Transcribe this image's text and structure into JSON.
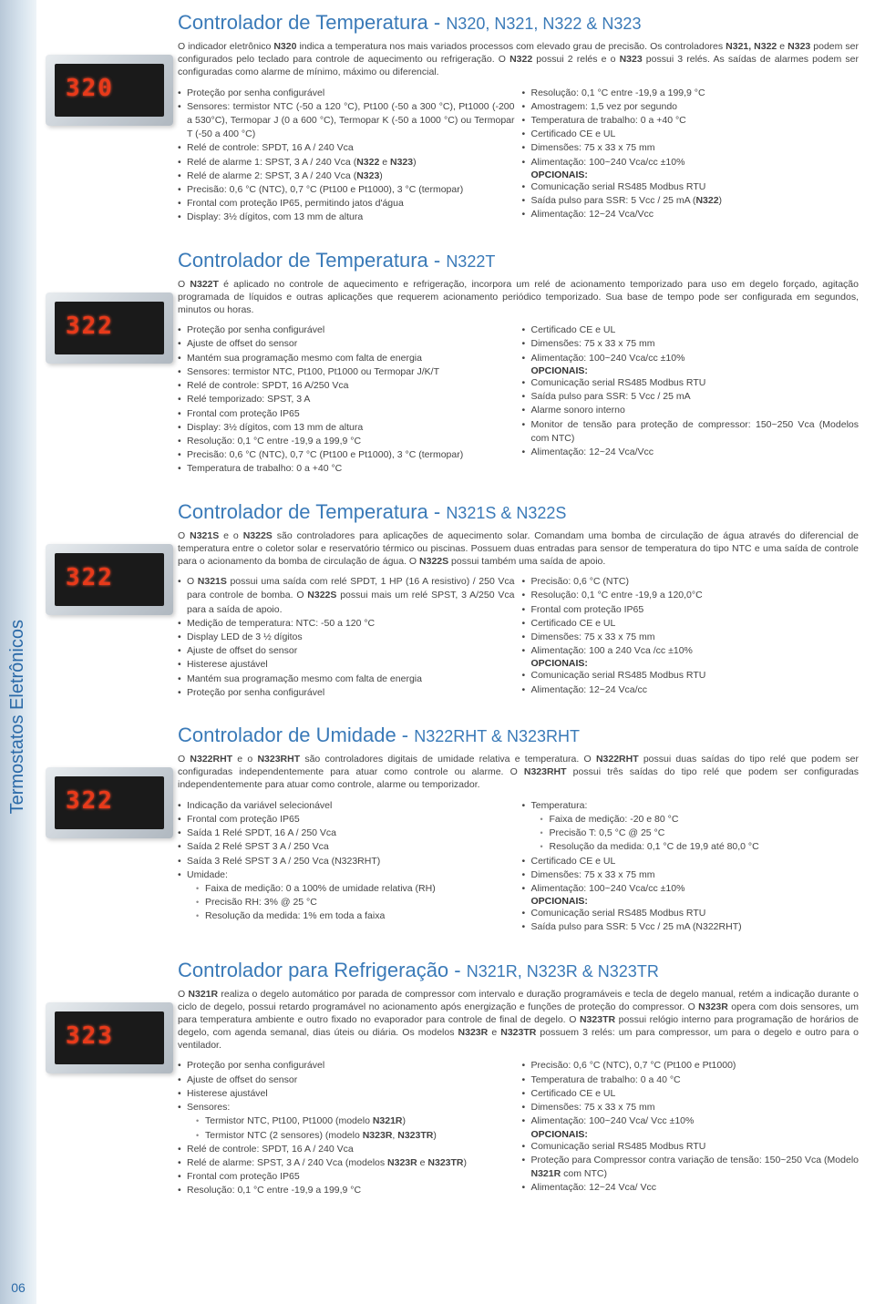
{
  "page_number": "06",
  "side_label": "Termostatos Eletrônicos",
  "colors": {
    "accent": "#3a7ab8",
    "led": "#e83a1a",
    "text": "#444"
  },
  "sections": [
    {
      "digits": "320",
      "title_main": "Controlador de Temperatura - ",
      "title_models": "N320, N321, N322 & N323",
      "desc": "O indicador eletrônico <b>N320</b> indica a temperatura nos mais variados processos com elevado grau de precisão. Os controladores <b>N321, N322</b> e <b>N323</b> podem ser configurados pelo teclado para controle de aquecimento ou refrigeração. O <b>N322</b> possui 2 relés e o <b>N323</b> possui 3 relés. As saídas de alarmes podem ser configuradas como alarme de mínimo, máximo ou diferencial.",
      "left": [
        "Proteção por senha configurável",
        "Sensores: termistor NTC (-50 a 120 °C), Pt100 (-50 a 300 °C), Pt1000 (-200 a 530°C), Termopar J (0 a 600 °C), Termopar K (-50 a 1000 °C) ou Termopar T (-50 a 400 °C)",
        "Relé de controle: SPDT, 16 A / 240 Vca",
        "Relé de alarme 1: SPST, 3 A / 240 Vca (<b>N322</b> e <b>N323</b>)",
        "Relé de alarme 2: SPST, 3 A / 240 Vca (<b>N323</b>)",
        "Precisão: 0,6 °C (NTC), 0,7 °C (Pt100 e Pt1000), 3 °C (termopar)",
        "Frontal com proteção IP65, permitindo jatos d'água",
        "Display: 3½ dígitos, com 13 mm de altura"
      ],
      "right": [
        "Resolução: 0,1 °C entre -19,9 a 199,9 °C",
        "Amostragem: 1,5 vez por segundo",
        "Temperatura de trabalho: 0 a +40 °C",
        "Certificado CE e UL",
        "Dimensões: 75 x 33 x 75 mm",
        "Alimentação: 100~240 Vca/cc ±10%"
      ],
      "opt_label": "OPCIONAIS:",
      "opt": [
        "Comunicação serial RS485 Modbus RTU",
        "Saída pulso para SSR: 5 Vcc / 25 mA (<b>N322</b>)",
        "Alimentação: 12~24 Vca/Vcc"
      ]
    },
    {
      "digits": "322",
      "title_main": "Controlador de Temperatura - ",
      "title_models": "N322T",
      "desc": "O <b>N322T</b> é aplicado no controle de aquecimento e refrigeração, incorpora um relé de acionamento temporizado para uso em degelo forçado, agitação programada de líquidos e outras aplicações que requerem acionamento periódico temporizado. Sua base de tempo pode ser configurada em segundos, minutos ou horas.",
      "left": [
        "Proteção por senha configurável",
        "Ajuste de offset do sensor",
        "Mantém sua programação mesmo com falta de energia",
        "Sensores: termistor NTC, Pt100, Pt1000 ou Termopar J/K/T",
        "Relé de controle: SPDT, 16 A/250 Vca",
        "Relé temporizado: SPST, 3 A",
        "Frontal com proteção IP65",
        "Display: 3½ dígitos, com 13 mm de altura",
        "Resolução: 0,1 °C entre -19,9 a 199,9 °C",
        "Precisão: 0,6 °C (NTC), 0,7 °C (Pt100 e Pt1000), 3 °C (termopar)",
        "Temperatura de trabalho: 0 a +40 °C"
      ],
      "right": [
        "Certificado CE e UL",
        "Dimensões: 75 x 33 x 75 mm",
        "Alimentação: 100~240 Vca/cc ±10%"
      ],
      "opt_label": "OPCIONAIS:",
      "opt": [
        "Comunicação serial RS485 Modbus RTU",
        "Saída pulso para SSR: 5 Vcc / 25 mA",
        "Alarme sonoro interno",
        "Monitor de tensão para proteção de compressor: 150~250 Vca (Modelos com NTC)",
        "Alimentação: 12~24 Vca/Vcc"
      ]
    },
    {
      "digits": "322",
      "title_main": "Controlador de Temperatura - ",
      "title_models": "N321S & N322S",
      "desc": "O <b>N321S</b> e o <b>N322S</b> são controladores para aplicações de aquecimento solar. Comandam uma bomba de circulação de água através do diferencial de temperatura entre o coletor solar e reservatório térmico ou piscinas. Possuem duas entradas para sensor de temperatura do tipo NTC e uma saída de controle para o acionamento da bomba de circulação de água. O <b>N322S</b> possui também uma saída de apoio.",
      "left": [
        "O <b>N321S</b> possui uma saída com relé SPDT, 1 HP (16 A resistivo) / 250 Vca para controle de bomba. O <b>N322S</b> possui mais um relé SPST, 3 A/250 Vca para a saída de apoio.",
        "Medição de temperatura: NTC: -50 a 120 °C",
        "Display LED de 3 ½ dígitos",
        "Ajuste de offset do sensor",
        "Histerese ajustável",
        "Mantém sua programação mesmo com falta de energia",
        "Proteção por senha configurável"
      ],
      "right": [
        "Precisão: 0,6 °C (NTC)",
        "Resolução: 0,1 °C entre -19,9 a 120,0°C",
        "Frontal com proteção IP65",
        "Certificado CE e UL",
        "Dimensões: 75 x 33 x 75 mm",
        "Alimentação: 100 a 240 Vca /cc ±10%"
      ],
      "opt_label": "OPCIONAIS:",
      "opt": [
        "Comunicação serial RS485 Modbus RTU",
        "Alimentação: 12~24 Vca/cc"
      ]
    },
    {
      "digits": "322",
      "title_main": "Controlador de Umidade - ",
      "title_models": "N322RHT & N323RHT",
      "desc": "O <b>N322RHT</b> e o <b>N323RHT</b> são controladores digitais de umidade relativa e temperatura. O <b>N322RHT</b> possui duas saídas do tipo relé que podem ser configuradas independentemente para atuar como controle ou alarme. O <b>N323RHT</b> possui três saídas do tipo relé que podem ser configuradas independentemente para atuar como controle, alarme ou temporizador.",
      "left_nested": [
        {
          "text": "Indicação da variável selecionável"
        },
        {
          "text": "Frontal com proteção IP65"
        },
        {
          "text": "Saída 1 Relé SPDT, 16 A / 250 Vca"
        },
        {
          "text": "Saída 2 Relé SPST 3 A / 250 Vca"
        },
        {
          "text": "Saída 3 Relé SPST 3 A / 250 Vca (N323RHT)"
        },
        {
          "text": "Umidade:",
          "sub": [
            "Faixa de medição: 0 a 100% de umidade relativa (RH)",
            "Precisão RH: 3% @ 25 °C",
            "Resolução da medida: 1% em toda a faixa"
          ]
        }
      ],
      "right_nested": [
        {
          "text": "Temperatura:",
          "sub": [
            "Faixa de medição: -20 e 80 °C",
            "Precisão T: 0,5 °C @ 25 °C",
            "Resolução da medida: 0,1 °C de 19,9 até 80,0 °C"
          ]
        },
        {
          "text": "Certificado CE e UL"
        },
        {
          "text": "Dimensões: 75 x 33 x 75 mm"
        },
        {
          "text": "Alimentação: 100~240 Vca/cc ±10%"
        }
      ],
      "opt_label": "OPCIONAIS:",
      "opt": [
        "Comunicação serial RS485 Modbus RTU",
        "Saída pulso para SSR: 5 Vcc / 25 mA (N322RHT)"
      ]
    },
    {
      "digits": "323",
      "title_main": "Controlador para Refrigeração - ",
      "title_models": "N321R, N323R & N323TR",
      "desc": "O <b>N321R</b> realiza o degelo automático por parada de compressor com intervalo e duração programáveis e tecla de degelo manual, retém a indicação durante o ciclo de degelo, possui retardo programável no acionamento após energização e funções de proteção do compressor. O <b>N323R</b> opera com dois sensores, um para temperatura ambiente e outro fixado no evaporador para controle de final de degelo. O <b>N323TR</b> possui relógio interno para programação de horários de degelo, com agenda semanal, dias úteis ou diária. Os modelos <b>N323R</b> e <b>N323TR</b> possuem 3 relés: um para compressor, um para o degelo e outro para o ventilador.",
      "left_nested": [
        {
          "text": "Proteção por senha configurável"
        },
        {
          "text": "Ajuste de offset do sensor"
        },
        {
          "text": "Histerese ajustável"
        },
        {
          "text": "Sensores:",
          "sub": [
            "Termistor NTC, Pt100, Pt1000 (modelo <b>N321R</b>)",
            "Termistor NTC (2 sensores) (modelo <b>N323R</b>, <b>N323TR</b>)"
          ]
        },
        {
          "text": "Relé de controle: SPDT, 16 A / 240 Vca"
        },
        {
          "text": "Relé de alarme: SPST, 3 A / 240 Vca (modelos <b>N323R</b> e <b>N323TR</b>)"
        },
        {
          "text": "Frontal com proteção IP65"
        },
        {
          "text": "Resolução: 0,1 °C entre -19,9 a 199,9 °C"
        }
      ],
      "right": [
        "Precisão: 0,6 °C (NTC), 0,7 °C (Pt100 e Pt1000)",
        "Temperatura de trabalho: 0 a 40 °C",
        "Certificado CE e UL",
        "Dimensões: 75 x 33 x 75 mm",
        "Alimentação: 100~240 Vca/ Vcc ±10%"
      ],
      "opt_label": "OPCIONAIS:",
      "opt": [
        "Comunicação serial RS485 Modbus RTU",
        "Proteção para Compressor contra variação de tensão: 150~250 Vca (Modelo <b>N321R</b> com NTC)",
        "Alimentação: 12~24 Vca/ Vcc"
      ]
    }
  ]
}
